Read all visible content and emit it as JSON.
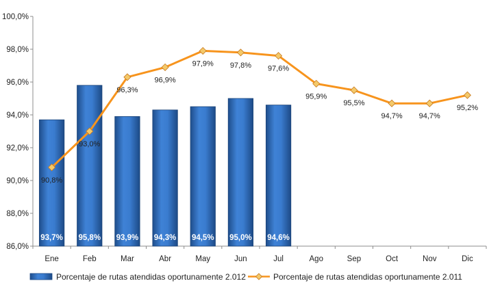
{
  "chart_data": {
    "type": "bar",
    "categories": [
      "Ene",
      "Feb",
      "Mar",
      "Abr",
      "May",
      "Jun",
      "Jul",
      "Ago",
      "Sep",
      "Oct",
      "Nov",
      "Dic"
    ],
    "ylim": [
      86.0,
      100.0
    ],
    "y_ticks": [
      "86,0%",
      "88,0%",
      "90,0%",
      "92,0%",
      "94,0%",
      "96,0%",
      "98,0%",
      "100,0%"
    ],
    "y_tick_values": [
      86,
      88,
      90,
      92,
      94,
      96,
      98,
      100
    ],
    "grid": false,
    "legend_position": "bottom",
    "series": [
      {
        "name": "Porcentaje de rutas atendidas oportunamente 2.012",
        "type": "bar",
        "color": "#2f6fc1",
        "values": [
          93.7,
          95.8,
          93.9,
          94.3,
          94.5,
          95.0,
          94.6,
          null,
          null,
          null,
          null,
          null
        ],
        "labels": [
          "93,7%",
          "95,8%",
          "93,9%",
          "94,3%",
          "94,5%",
          "95,0%",
          "94,6%",
          null,
          null,
          null,
          null,
          null
        ]
      },
      {
        "name": "Porcentaje de rutas atendidas oportunamente 2.011",
        "type": "line",
        "color": "#f7941d",
        "marker_color": "#f4c96a",
        "values": [
          90.8,
          93.0,
          96.3,
          96.9,
          97.9,
          97.8,
          97.6,
          95.9,
          95.5,
          94.7,
          94.7,
          95.2
        ],
        "labels": [
          "90,8%",
          "93,0%",
          "96,3%",
          "96,9%",
          "97,9%",
          "97,8%",
          "97,6%",
          "95,9%",
          "95,5%",
          "94,7%",
          "94,7%",
          "95,2%"
        ]
      }
    ]
  }
}
